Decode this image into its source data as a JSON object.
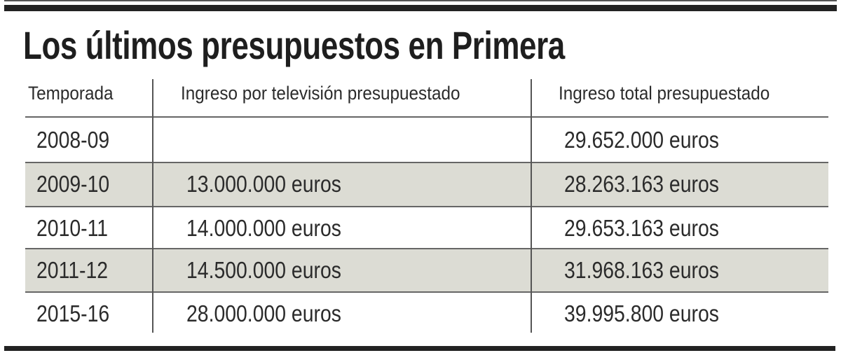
{
  "title": "Los últimos presupuestos en Primera",
  "colors": {
    "shaded_row": "#dcdcd4",
    "rule": "#222222"
  },
  "chart_data": {
    "type": "table",
    "title": "Los últimos presupuestos en Primera",
    "columns": [
      "Temporada",
      "Ingreso por televisión presupuestado",
      "Ingreso total presupuestado"
    ],
    "rows": [
      [
        "2008-09",
        "",
        "29.652.000 euros"
      ],
      [
        "2009-10",
        "13.000.000 euros",
        "28.263.163 euros"
      ],
      [
        "2010-11",
        "14.000.000 euros",
        "29.653.163 euros"
      ],
      [
        "2011-12",
        "14.500.000 euros",
        "31.968.163 euros"
      ],
      [
        "2015-16",
        "28.000.000 euros",
        "39.995.800 euros"
      ]
    ],
    "shaded_rows": [
      1,
      3
    ]
  }
}
